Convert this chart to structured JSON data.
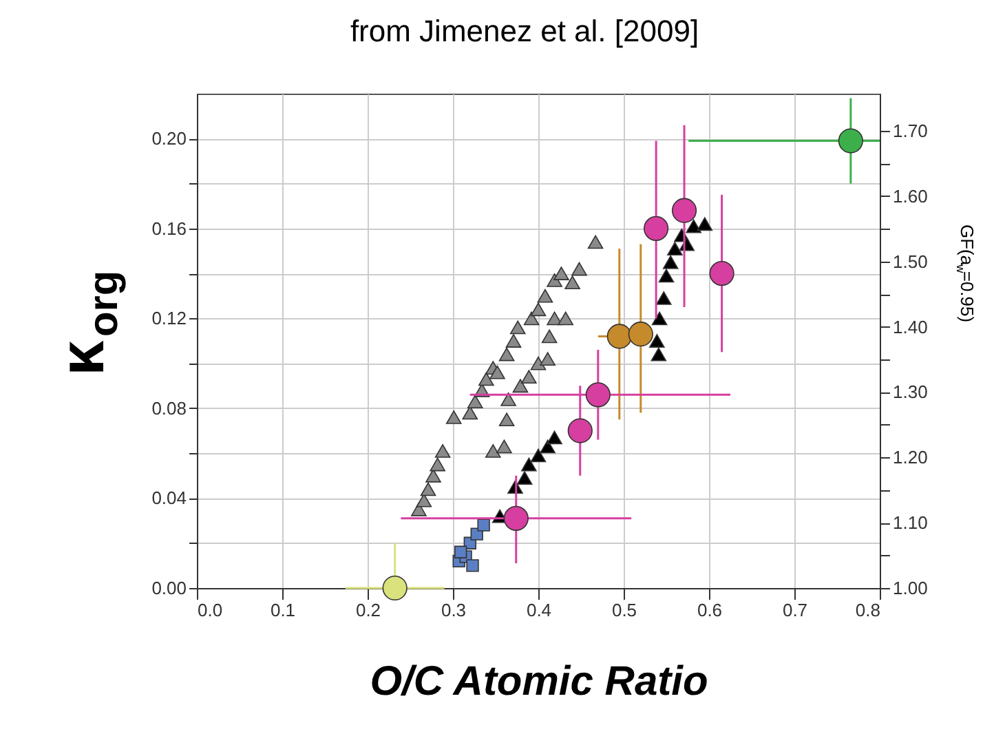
{
  "chart_data": {
    "type": "scatter",
    "title": "from Jimenez et al. [2009]",
    "xlabel": "O/C Atomic Ratio",
    "ylabel": "κ$_{org}$",
    "y2label": "GF(a$_{w}$=0.95)",
    "xlim": [
      0,
      0.8
    ],
    "ylim": [
      0,
      0.22
    ],
    "y2lim": [
      1.0,
      1.757
    ],
    "xticks": [
      {
        "value": 0,
        "label": "0.0"
      },
      0.1,
      0.2,
      0.3,
      0.4,
      0.5,
      0.6,
      0.7,
      0.8
    ],
    "yticks": [
      {
        "value": 0,
        "label": "0.00"
      },
      {
        "value": 0.02,
        "label": null
      },
      0.04,
      {
        "value": 0.06,
        "label": null
      },
      0.08,
      {
        "value": 0.1,
        "label": null
      },
      0.12,
      {
        "value": 0.14,
        "label": null
      },
      0.16,
      {
        "value": 0.18,
        "label": null
      },
      {
        "value": 0.2,
        "label": "0.20"
      }
    ],
    "y2ticks": [
      {
        "value": 1,
        "label": "1.00"
      },
      {
        "value": 1.05,
        "label": null
      },
      {
        "value": 1.1,
        "label": "1.10"
      },
      {
        "value": 1.15,
        "label": null
      },
      {
        "value": 1.2,
        "label": "1.20"
      },
      {
        "value": 1.25,
        "label": null
      },
      {
        "value": 1.3,
        "label": "1.30"
      },
      {
        "value": 1.35,
        "label": null
      },
      {
        "value": 1.4,
        "label": "1.40"
      },
      {
        "value": 1.45,
        "label": null
      },
      {
        "value": 1.5,
        "label": "1.50"
      },
      {
        "value": 1.55,
        "label": null
      },
      {
        "value": 1.6,
        "label": "1.60"
      },
      {
        "value": 1.65,
        "label": null
      },
      {
        "value": 1.7,
        "label": "1.70"
      }
    ],
    "grid": true,
    "series": [
      {
        "marker": "triangle",
        "color": "#8a8a8a",
        "x": [
          0.26,
          0.266,
          0.271,
          0.277,
          0.282,
          0.288,
          0.301,
          0.32,
          0.326,
          0.334,
          0.339,
          0.347,
          0.352,
          0.363,
          0.371,
          0.376,
          0.392,
          0.4,
          0.408,
          0.419,
          0.427,
          0.44,
          0.448,
          0.467,
          0.347,
          0.36,
          0.363,
          0.365,
          0.379,
          0.389,
          0.4,
          0.411,
          0.413,
          0.419,
          0.432
        ],
        "values": [
          0.035,
          0.039,
          0.044,
          0.05,
          0.055,
          0.061,
          0.076,
          0.078,
          0.083,
          0.088,
          0.093,
          0.098,
          0.096,
          0.104,
          0.11,
          0.116,
          0.12,
          0.124,
          0.13,
          0.137,
          0.14,
          0.136,
          0.142,
          0.154,
          0.061,
          0.063,
          0.075,
          0.084,
          0.09,
          0.094,
          0.1,
          0.102,
          0.112,
          0.12,
          0.12
        ]
      },
      {
        "marker": "triangle",
        "color": "#000000",
        "x": [
          0.355,
          0.373,
          0.384,
          0.389,
          0.4,
          0.411,
          0.419,
          0.541,
          0.539,
          0.542,
          0.547,
          0.55,
          0.555,
          0.56,
          0.568,
          0.574,
          0.582,
          0.595
        ],
        "values": [
          0.032,
          0.045,
          0.049,
          0.055,
          0.059,
          0.063,
          0.067,
          0.104,
          0.11,
          0.12,
          0.129,
          0.139,
          0.145,
          0.151,
          0.157,
          0.153,
          0.161,
          0.162
        ]
      },
      {
        "marker": "square",
        "color": "#5b7fc4",
        "x": [
          0.307,
          0.315,
          0.323,
          0.32,
          0.328,
          0.336,
          0.309
        ],
        "values": [
          0.012,
          0.014,
          0.01,
          0.02,
          0.024,
          0.028,
          0.016
        ]
      },
      {
        "marker": "circle",
        "color": "#d9e27d",
        "x": [
          0.232
        ],
        "values": [
          0
        ],
        "errors": [
          [
            0,
            0.02
          ]
        ],
        "xerrors": [
          [
            0.174,
            0.29
          ]
        ]
      },
      {
        "marker": "circle",
        "color": "#3daf4a",
        "x": [
          0.766
        ],
        "values": [
          0.199
        ],
        "errors": [
          [
            0.18,
            0.218
          ]
        ],
        "xerrors": [
          [
            0.576,
            0.8
          ]
        ]
      },
      {
        "marker": "circle",
        "color": "#c58a2b",
        "x": [
          0.495,
          0.52
        ],
        "values": [
          0.112,
          0.113
        ],
        "errors": [
          [
            0.075,
            0.151
          ],
          [
            0.078,
            0.153
          ]
        ],
        "xerrors": [
          [
            0.47,
            0.495
          ],
          null
        ]
      },
      {
        "marker": "circle",
        "color": "#d63fa0",
        "x": [
          0.374,
          0.449,
          0.47,
          0.538,
          0.571,
          0.615
        ],
        "values": [
          0.031,
          0.07,
          0.086,
          0.16,
          0.168,
          0.14
        ],
        "errors": [
          [
            0.011,
            0.05
          ],
          [
            0.05,
            0.09
          ],
          [
            0.066,
            0.106
          ],
          [
            0.12,
            0.199
          ],
          [
            0.125,
            0.206
          ],
          [
            0.105,
            0.175
          ]
        ],
        "xerrors": [
          [
            0.239,
            0.509
          ],
          null,
          [
            0.32,
            0.625
          ],
          null,
          null,
          null
        ]
      }
    ]
  }
}
